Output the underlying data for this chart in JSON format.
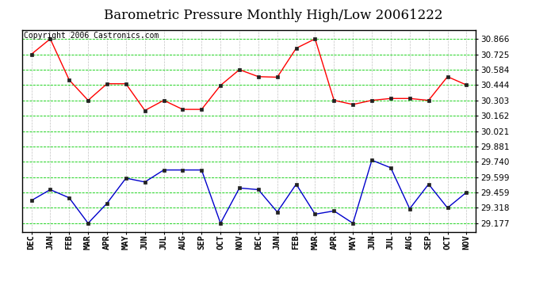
{
  "title": "Barometric Pressure Monthly High/Low 20061222",
  "copyright": "Copyright 2006 Castronics.com",
  "x_labels": [
    "DEC",
    "JAN",
    "FEB",
    "MAR",
    "APR",
    "MAY",
    "JUN",
    "JUL",
    "AUG",
    "SEP",
    "OCT",
    "NOV",
    "DEC",
    "JAN",
    "FEB",
    "MAR",
    "APR",
    "MAY",
    "JUN",
    "JUL",
    "AUG",
    "SEP",
    "OCT",
    "NOV"
  ],
  "high_values": [
    30.725,
    30.866,
    30.49,
    30.303,
    30.455,
    30.455,
    30.21,
    30.303,
    30.22,
    30.22,
    30.44,
    30.584,
    30.52,
    30.515,
    30.78,
    30.866,
    30.303,
    30.265,
    30.303,
    30.32,
    30.32,
    30.303,
    30.52,
    30.444
  ],
  "low_values": [
    29.385,
    29.485,
    29.41,
    29.177,
    29.36,
    29.59,
    29.555,
    29.665,
    29.665,
    29.665,
    29.177,
    29.5,
    29.485,
    29.28,
    29.535,
    29.26,
    29.29,
    29.177,
    29.755,
    29.685,
    29.31,
    29.535,
    29.318,
    29.46
  ],
  "high_color": "#ff0000",
  "low_color": "#0000cc",
  "bg_color": "#ffffff",
  "grid_color": "#00cc00",
  "yticks": [
    29.177,
    29.318,
    29.459,
    29.599,
    29.74,
    29.881,
    30.021,
    30.162,
    30.303,
    30.444,
    30.584,
    30.725,
    30.866
  ],
  "ylim": [
    29.1,
    30.95
  ],
  "title_fontsize": 12,
  "tick_fontsize": 7.5,
  "copyright_fontsize": 7
}
